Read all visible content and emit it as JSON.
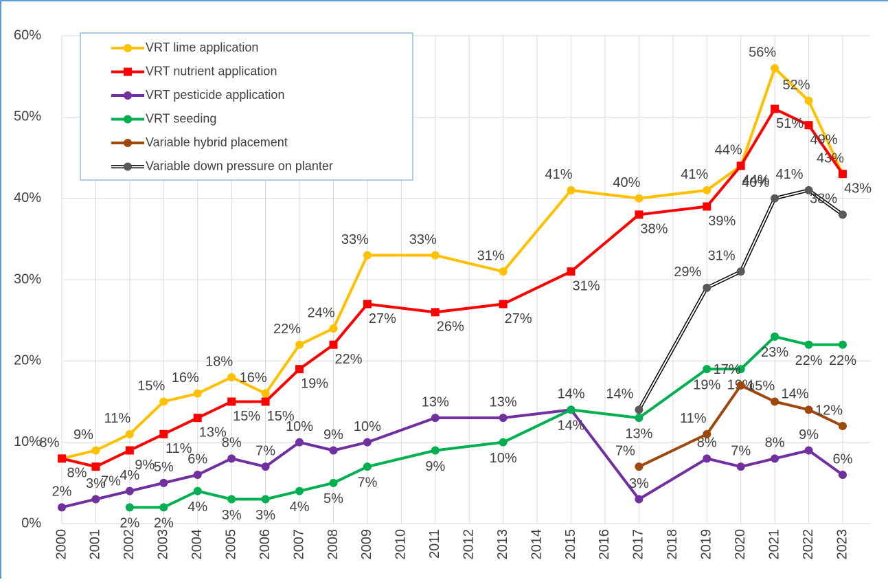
{
  "chart_data": {
    "type": "line",
    "x": [
      2000,
      2001,
      2002,
      2003,
      2004,
      2005,
      2006,
      2007,
      2008,
      2009,
      2011,
      2013,
      2015,
      2017,
      2019,
      2020,
      2021,
      2022,
      2023
    ],
    "xlim": [
      2000,
      2023
    ],
    "xticks": [
      2000,
      2001,
      2002,
      2003,
      2004,
      2005,
      2006,
      2007,
      2008,
      2009,
      2010,
      2011,
      2012,
      2013,
      2014,
      2015,
      2016,
      2017,
      2018,
      2019,
      2020,
      2021,
      2022,
      2023
    ],
    "ylim": [
      0,
      60
    ],
    "yticks": [
      {
        "value": 0,
        "label": "0%"
      },
      {
        "value": 10,
        "label": "10%"
      },
      {
        "value": 20,
        "label": "20%"
      },
      {
        "value": 30,
        "label": "30%"
      },
      {
        "value": 40,
        "label": "40%"
      },
      {
        "value": 50,
        "label": "50%"
      },
      {
        "value": 60,
        "label": "60%"
      }
    ],
    "grid": true,
    "legend_position": "upper left",
    "series": [
      {
        "name": "VRT lime application",
        "color": "#ffc000",
        "marker": "circle",
        "values": [
          8,
          9,
          11,
          15,
          16,
          18,
          16,
          22,
          24,
          33,
          33,
          31,
          41,
          40,
          41,
          44,
          56,
          52,
          43
        ],
        "value_labels": [
          "8%",
          "9%",
          "11%",
          "15%",
          "16%",
          "18%",
          "16%",
          "22%",
          "24%",
          "33%",
          "33%",
          "31%",
          "41%",
          "40%",
          "41%",
          "44%",
          "56%",
          "52%",
          "43%"
        ]
      },
      {
        "name": "VRT nutrient application",
        "color": "#ff0000",
        "marker": "square",
        "values": [
          8,
          7,
          9,
          11,
          13,
          15,
          15,
          19,
          22,
          27,
          26,
          27,
          31,
          38,
          39,
          44,
          51,
          49,
          43
        ],
        "value_labels": [
          "8%",
          "7%",
          "9%",
          "11%",
          "13%",
          "15%",
          "15%",
          "19%",
          "22%",
          "27%",
          "26%",
          "27%",
          "31%",
          "38%",
          "39%",
          "44%",
          "51%",
          "49%",
          "43%"
        ]
      },
      {
        "name": "VRT pesticide application",
        "color": "#7030a0",
        "marker": "circle",
        "values": [
          2,
          3,
          4,
          5,
          6,
          8,
          7,
          10,
          9,
          10,
          13,
          13,
          14,
          3,
          8,
          7,
          8,
          9,
          6
        ],
        "value_labels": [
          "2%",
          "3%",
          "4%",
          "5%",
          "6%",
          "8%",
          "7%",
          "10%",
          "9%",
          "10%",
          "13%",
          "13%",
          "14%",
          "3%",
          "8%",
          "7%",
          "8%",
          "9%",
          "6%"
        ]
      },
      {
        "name": "VRT seeding",
        "color": "#00b050",
        "marker": "circle",
        "values": [
          null,
          null,
          2,
          2,
          4,
          3,
          3,
          4,
          5,
          7,
          9,
          10,
          14,
          13,
          19,
          19,
          23,
          22,
          22
        ],
        "value_labels": [
          null,
          null,
          "2%",
          "2%",
          "4%",
          "3%",
          "3%",
          "4%",
          "5%",
          "7%",
          "9%",
          "10%",
          "14%",
          "13%",
          "19%",
          "19%",
          "23%",
          "22%",
          "22%"
        ]
      },
      {
        "name": "Variable hybrid placement",
        "color": "#9e480e",
        "marker": "circle",
        "values": [
          null,
          null,
          null,
          null,
          null,
          null,
          null,
          null,
          null,
          null,
          null,
          null,
          null,
          7,
          11,
          17,
          15,
          14,
          12
        ],
        "value_labels": [
          null,
          null,
          null,
          null,
          null,
          null,
          null,
          null,
          null,
          null,
          null,
          null,
          null,
          "7%",
          "11%",
          "17%",
          "15%",
          "14%",
          "12%"
        ]
      },
      {
        "name": "Variable down pressure on planter",
        "color": "#595959",
        "marker": "circle",
        "line_style": "double",
        "values": [
          null,
          null,
          null,
          null,
          null,
          null,
          null,
          null,
          null,
          null,
          null,
          null,
          null,
          14,
          29,
          31,
          40,
          41,
          38
        ],
        "value_labels": [
          null,
          null,
          null,
          null,
          null,
          null,
          null,
          null,
          null,
          null,
          null,
          null,
          null,
          "14%",
          "29%",
          "31%",
          "40%",
          "41%",
          "38%"
        ]
      }
    ]
  }
}
